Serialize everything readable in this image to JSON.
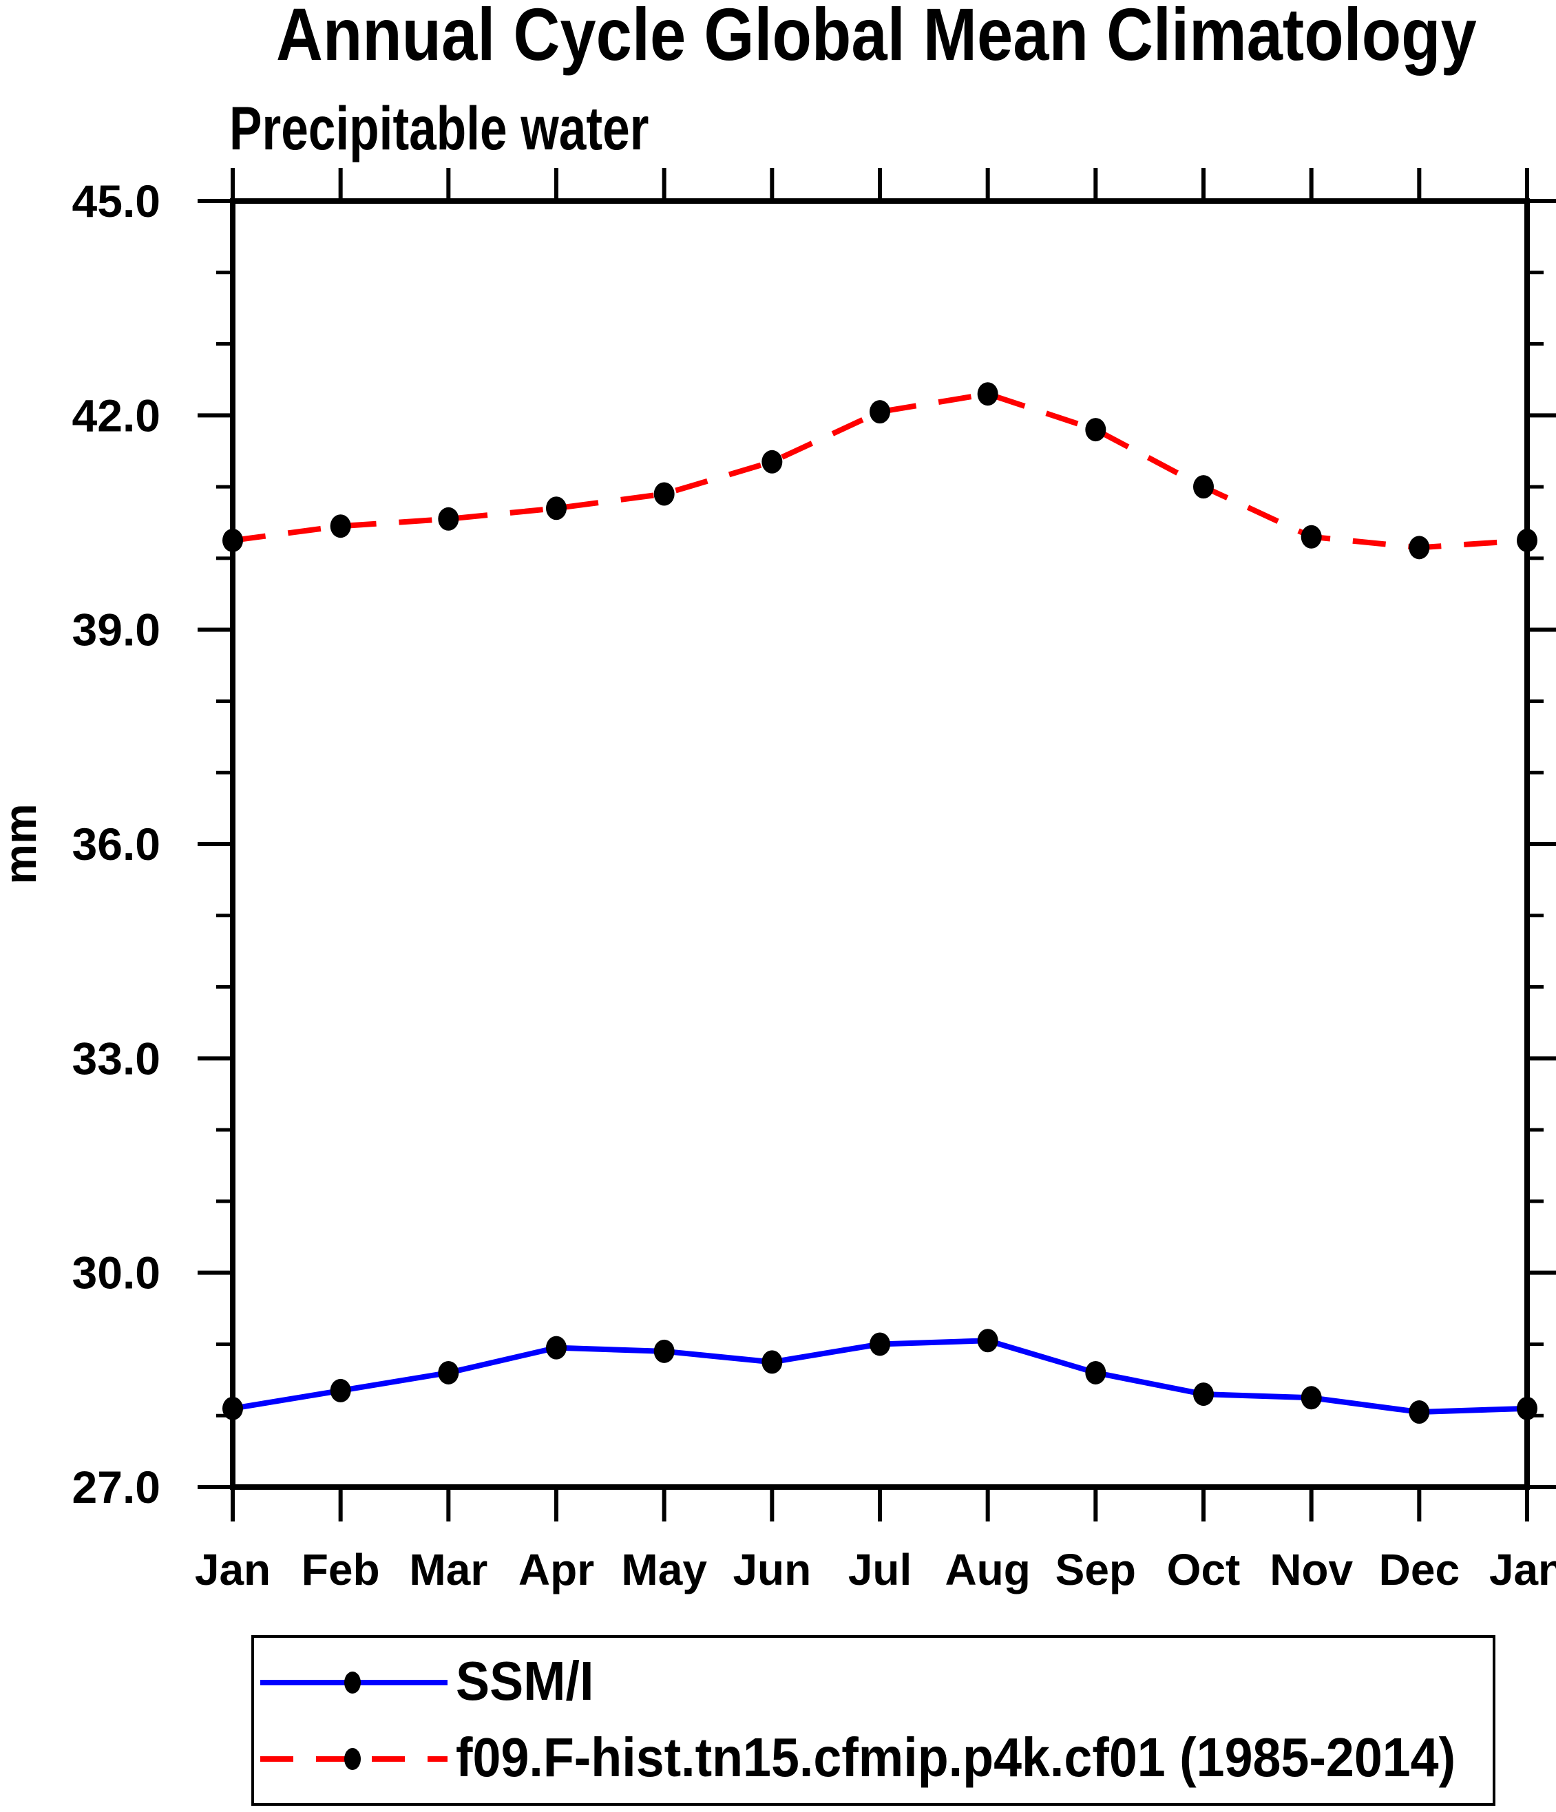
{
  "title": "Annual Cycle Global Mean Climatology",
  "subtitle": "Precipitable water",
  "chart_data": {
    "type": "line",
    "categories": [
      "Jan",
      "Feb",
      "Mar",
      "Apr",
      "May",
      "Jun",
      "Jul",
      "Aug",
      "Sep",
      "Oct",
      "Nov",
      "Dec",
      "Jan"
    ],
    "xlabel": "",
    "ylabel": "mm",
    "ylim": [
      27.0,
      45.0
    ],
    "ytick_major": [
      27,
      30,
      33,
      36,
      39,
      42,
      45
    ],
    "ytick_labels": [
      "27.0",
      "30.0",
      "33.0",
      "36.0",
      "39.0",
      "42.0",
      "45.0"
    ],
    "ytick_minor_step": 1.0,
    "grid": "off",
    "legend_position": "bottom-box",
    "series": [
      {
        "name": "SSM/I",
        "color": "#0000FF",
        "line_style": "solid",
        "marker": "filled-circle",
        "marker_color": "#000000",
        "values": [
          28.1,
          28.35,
          28.6,
          28.95,
          28.9,
          28.75,
          29.0,
          29.05,
          28.6,
          28.3,
          28.25,
          28.05,
          28.1
        ]
      },
      {
        "name": "f09.F-hist.tn15.cfmip.p4k.cf01 (1985-2014)",
        "color": "#FF0000",
        "line_style": "dashed",
        "marker": "filled-circle",
        "marker_color": "#000000",
        "values": [
          40.25,
          40.45,
          40.55,
          40.7,
          40.9,
          41.35,
          42.05,
          42.3,
          41.8,
          41.0,
          40.3,
          40.15,
          40.25
        ]
      }
    ]
  },
  "colors": {
    "axis": "#000000",
    "background": "#FFFFFF",
    "ssmi_line": "#0000FF",
    "model_line": "#FF0000",
    "marker": "#000000"
  }
}
